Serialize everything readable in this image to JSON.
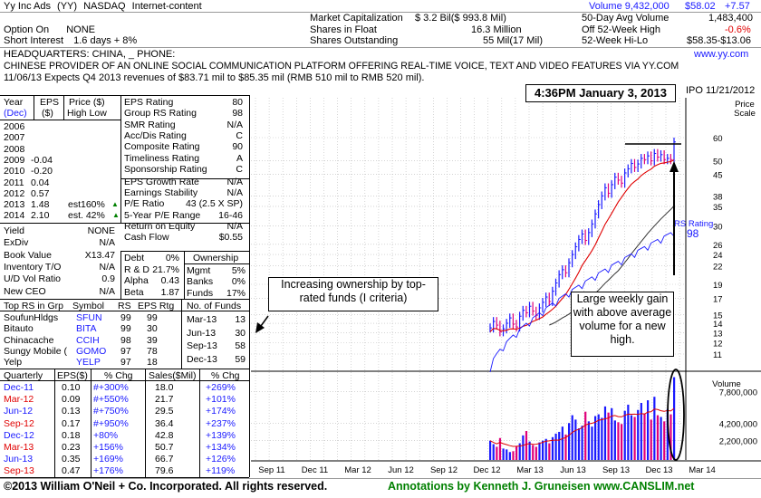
{
  "header": {
    "company": "Yy Inc Ads",
    "symbol": "(YY)",
    "exchange": "NASDAQ",
    "industry": "Internet-content",
    "volume": "Volume 9,432,000",
    "price": "$58.02",
    "change": "+7.57",
    "option_label": "Option On",
    "option_value": "NONE",
    "short_label": "Short Interest",
    "short_value": "1.6 days + 8%",
    "market_cap_label": "Market Capitalization",
    "market_cap_value": "$ 3.2 Bil($ 993.8 Mil)",
    "float_label": "Shares in Float",
    "float_value": "16.3 Million",
    "outstanding_label": "Shares Outstanding",
    "outstanding_value": "55 Mil(17 Mil)",
    "avg_vol_label": "50-Day Avg Volume",
    "avg_vol_value": "1,483,400",
    "off_high_label": "Off 52-Week High",
    "off_high_value": "-0.6%",
    "hilo_label": "52-Week Hi-Lo",
    "hilo_value": "$58.35-$13.06",
    "hq": "HEADQUARTERS: CHINA, _         PHONE:",
    "website": "www.yy.com",
    "description": "CHINESE PROVIDER OF AN ONLINE SOCIAL COMMUNICATION PLATFORM OFFERING REAL-TIME VOICE, TEXT AND VIDEO FEATURES VIA YY.COM",
    "news": "11/06/13  Expects Q4 2013 revenues of $83.71 mil to $85.35 mil (RMB 510 mil to RMB 520 mil)."
  },
  "annual": {
    "head_year": "Year",
    "head_dec": "(Dec)",
    "head_eps": "EPS",
    "head_eps_unit": "($)",
    "head_price": "Price ($)",
    "head_hl": "High  Low",
    "rows": [
      {
        "year": "2006",
        "eps": "",
        "note": ""
      },
      {
        "year": "2007",
        "eps": "",
        "note": ""
      },
      {
        "year": "2008",
        "eps": "",
        "note": ""
      },
      {
        "year": "2009",
        "eps": "-0.04",
        "note": ""
      },
      {
        "year": "2010",
        "eps": "-0.20",
        "note": ""
      },
      {
        "year": "2011",
        "eps": "0.04",
        "note": ""
      },
      {
        "year": "2012",
        "eps": "0.57",
        "note": ""
      },
      {
        "year": "2013",
        "eps": "1.48",
        "note": "est160%"
      },
      {
        "year": "2014",
        "eps": "2.10",
        "note": "est. 42%"
      }
    ]
  },
  "ratings": [
    {
      "label": "EPS Rating",
      "value": "80"
    },
    {
      "label": "Group RS Rating",
      "value": "98"
    },
    {
      "label": "SMR Rating",
      "value": "N/A"
    },
    {
      "label": "Acc/Dis Rating",
      "value": "C"
    },
    {
      "label": "Composite Rating",
      "value": "90"
    },
    {
      "label": "Timeliness Rating",
      "value": "A"
    },
    {
      "label": "Sponsorship Rating",
      "value": "C"
    },
    {
      "label": "EPS Growth Rate",
      "value": "N/A"
    },
    {
      "label": "Earnings Stability",
      "value": "N/A"
    },
    {
      "label": "P/E Ratio",
      "value": "43 (2.5 X SP)"
    },
    {
      "label": "5-Year P/E Range",
      "value": "16-46"
    },
    {
      "label": "Return on Equity",
      "value": "N/A"
    },
    {
      "label": "Cash Flow",
      "value": "$0.55"
    }
  ],
  "misc_left": [
    {
      "label": "Yield",
      "value": "NONE"
    },
    {
      "label": "ExDiv",
      "value": "N/A"
    },
    {
      "label": "Book Value",
      "value": "X13.47"
    },
    {
      "label": "Inventory T/O",
      "value": "N/A"
    },
    {
      "label": "U/D Vol Ratio",
      "value": "0.9"
    },
    {
      "label": "New CEO",
      "value": "N/A"
    }
  ],
  "misc_mid": [
    {
      "label": "Debt",
      "value": "0%"
    },
    {
      "label": "R & D",
      "value": "21.7%"
    },
    {
      "label": "Alpha",
      "value": "0.43"
    },
    {
      "label": "Beta",
      "value": "1.87"
    }
  ],
  "ownership": {
    "title": "Ownership",
    "rows": [
      {
        "label": "Mgmt",
        "value": "5%"
      },
      {
        "label": "Banks",
        "value": "0%"
      },
      {
        "label": "Funds",
        "value": "17%"
      }
    ]
  },
  "top_rs": {
    "headers": [
      "Top RS in Grp",
      "Symbol",
      "RS",
      "EPS Rtg"
    ],
    "rows": [
      {
        "name": "SoufunHldgs",
        "symbol": "SFUN",
        "rs": "99",
        "eps": "99"
      },
      {
        "name": "Bitauto",
        "symbol": "BITA",
        "rs": "99",
        "eps": "30"
      },
      {
        "name": "Chinacache",
        "symbol": "CCIH",
        "rs": "98",
        "eps": "39"
      },
      {
        "name": "Sungy Mobile (",
        "symbol": "GOMO",
        "rs": "97",
        "eps": "78"
      },
      {
        "name": "Yelp",
        "symbol": "YELP",
        "rs": "97",
        "eps": "18"
      }
    ]
  },
  "funds": {
    "title": "No. of Funds",
    "rows": [
      {
        "q": "Mar-13",
        "n": "13"
      },
      {
        "q": "Jun-13",
        "n": "30"
      },
      {
        "q": "Sep-13",
        "n": "58"
      },
      {
        "q": "Dec-13",
        "n": "59"
      }
    ]
  },
  "quarterly": {
    "headers": [
      "Quarterly",
      "EPS($)",
      "% Chg",
      "Sales($Mil)",
      "% Chg"
    ],
    "rows": [
      {
        "q": "Dec-11",
        "eps": "0.10",
        "eps_chg": "#+300%",
        "sales": "18.0",
        "sales_chg": "+269%",
        "color": "blue"
      },
      {
        "q": "Mar-12",
        "eps": "0.09",
        "eps_chg": "#+550%",
        "sales": "21.7",
        "sales_chg": "+101%",
        "color": "red"
      },
      {
        "q": "Jun-12",
        "eps": "0.13",
        "eps_chg": "#+750%",
        "sales": "29.5",
        "sales_chg": "+174%",
        "color": "blue"
      },
      {
        "q": "Sep-12",
        "eps": "0.17",
        "eps_chg": "#+950%",
        "sales": "36.4",
        "sales_chg": "+237%",
        "color": "red"
      },
      {
        "q": "Dec-12",
        "eps": "0.18",
        "eps_chg": "+80%",
        "sales": "42.8",
        "sales_chg": "+139%",
        "color": "blue"
      },
      {
        "q": "Mar-13",
        "eps": "0.23",
        "eps_chg": "+156%",
        "sales": "50.7",
        "sales_chg": "+134%",
        "color": "red"
      },
      {
        "q": "Jun-13",
        "eps": "0.35",
        "eps_chg": "+169%",
        "sales": "66.7",
        "sales_chg": "+126%",
        "color": "blue"
      },
      {
        "q": "Sep-13",
        "eps": "0.47",
        "eps_chg": "+176%",
        "sales": "79.6",
        "sales_chg": "+119%",
        "color": "red"
      }
    ]
  },
  "chart_data": {
    "type": "bar",
    "stamp": "4:36PM January 3, 2013",
    "ipo": "IPO 11/21/2012",
    "price_scale_label": "Price Scale",
    "rs_label": "RS Rating",
    "rs_value": "98",
    "volume_label": "Volume",
    "price_ticks": [
      60,
      50,
      45,
      38,
      35,
      30,
      26,
      24,
      22,
      19,
      17,
      15,
      14,
      13,
      12,
      11
    ],
    "volume_ticks": [
      "7,800,000",
      "4,200,000",
      "2,200,000"
    ],
    "volume_tick_values": [
      7800000,
      4200000,
      2200000
    ],
    "x_labels": [
      "Sep 11",
      "Dec 11",
      "Mar 12",
      "Jun 12",
      "Sep 12",
      "Dec 12",
      "Mar 13",
      "Jun 13",
      "Sep 13",
      "Dec 13",
      "Mar 14"
    ],
    "weekly_close": [
      13.5,
      14.2,
      13.8,
      13.1,
      13.4,
      14.0,
      14.6,
      13.9,
      13.6,
      14.8,
      15.5,
      15.2,
      16.0,
      15.4,
      14.9,
      15.8,
      16.5,
      17.2,
      16.6,
      18.0,
      19.2,
      20.5,
      21.3,
      20.8,
      22.5,
      24.0,
      25.5,
      27.0,
      28.2,
      26.8,
      28.5,
      30.5,
      33.0,
      35.5,
      38.0,
      40.5,
      38.8,
      41.5,
      44.0,
      43.0,
      42.0,
      45.5,
      47.0,
      49.0,
      47.5,
      48.8,
      51.0,
      50.5,
      52.0,
      50.0,
      53.0,
      51.5,
      52.5,
      50.5,
      51.0,
      50.5,
      58.0
    ],
    "weekly_volume": [
      2200000,
      1800000,
      1500000,
      2500000,
      1300000,
      1200000,
      900000,
      1000000,
      1600000,
      1900000,
      2800000,
      3300000,
      2100000,
      1700000,
      1500000,
      2000000,
      2200000,
      2400000,
      1900000,
      2600000,
      3000000,
      3200000,
      3800000,
      2900000,
      4200000,
      5100000,
      4600000,
      3600000,
      3900000,
      5500000,
      4400000,
      3800000,
      5000000,
      5200000,
      4800000,
      6100000,
      5400000,
      5900000,
      4500000,
      4300000,
      4100000,
      5600000,
      6300000,
      5100000,
      4900000,
      5700000,
      6500000,
      5300000,
      6800000,
      4600000,
      7200000,
      5100000,
      4900000,
      4400000,
      5800000,
      5200000,
      9432000
    ],
    "callouts": [
      "Increasing ownership by top-rated funds (I criteria)",
      "Large weekly gain with above average volume for a new high."
    ]
  },
  "footer": {
    "copyright": "©2013 William O'Neil + Co. Incorporated. All rights reserved.",
    "annotations": "Annotations by Kenneth J. Gruneisen www.CANSLIM.net"
  }
}
